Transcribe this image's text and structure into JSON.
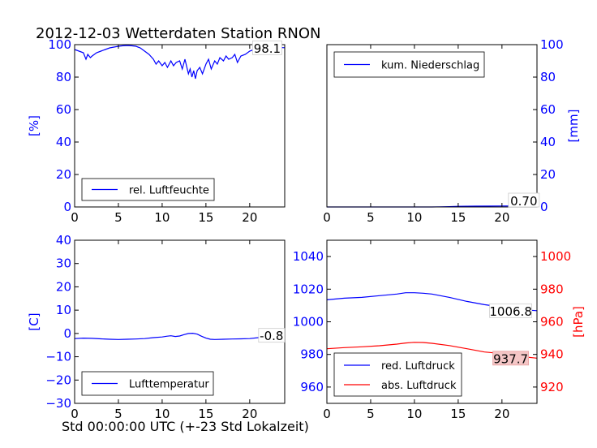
{
  "title": "2012-12-03 Wetterdaten Station RNON",
  "xcaption": "Std 00:00:00 UTC (+-23 Std Lokalzeit)",
  "colors": {
    "blue": "#0000ff",
    "red": "#ff0000",
    "black": "#000000",
    "callout_red_fill": "#f4c6c6"
  },
  "chart_data": [
    {
      "type": "line",
      "xlim": [
        0,
        24
      ],
      "ylim": [
        0,
        100
      ],
      "xticks": [
        "0",
        "5",
        "10",
        "15",
        "20"
      ],
      "yticks": [
        "0",
        "20",
        "40",
        "60",
        "80",
        "100"
      ],
      "ylabel": "[%]",
      "legend": {
        "position": "lower-center",
        "entries": [
          "rel. Luftfeuchte"
        ]
      },
      "callout": {
        "text": "98.1",
        "x": 22,
        "y": 98.1
      },
      "series": [
        {
          "name": "rel. Luftfeuchte",
          "color": "#0000ff",
          "x": [
            0,
            0.5,
            1.0,
            1.3,
            1.5,
            1.8,
            2.0,
            2.5,
            3.0,
            3.5,
            4.0,
            4.5,
            5.0,
            5.5,
            6.0,
            6.5,
            7.0,
            7.5,
            8.0,
            8.5,
            9.0,
            9.3,
            9.6,
            10.0,
            10.3,
            10.6,
            11.0,
            11.3,
            11.6,
            12.0,
            12.3,
            12.6,
            13.0,
            13.2,
            13.4,
            13.6,
            13.8,
            14.0,
            14.3,
            14.6,
            15.0,
            15.3,
            15.6,
            16.0,
            16.3,
            16.6,
            17.0,
            17.3,
            17.6,
            18.0,
            18.3,
            18.6,
            19.0,
            19.5,
            20.0,
            20.5,
            21.0,
            22.0,
            23.0,
            24.0
          ],
          "y": [
            97,
            96,
            95,
            91,
            94,
            92,
            93,
            95,
            96,
            97,
            98,
            98.5,
            99,
            99.3,
            99.5,
            99.3,
            99,
            98,
            96,
            94,
            91,
            88,
            90,
            87,
            89,
            86,
            90,
            87,
            89,
            90,
            85,
            91,
            82,
            85,
            80,
            84,
            79,
            84,
            86,
            82,
            88,
            91,
            85,
            90,
            88,
            92,
            90,
            93,
            91,
            92,
            94,
            89,
            93,
            94,
            96,
            97,
            98,
            98.5,
            98.3,
            98.1
          ]
        }
      ]
    },
    {
      "type": "line",
      "xlim": [
        0,
        24
      ],
      "ylim": [
        0,
        100
      ],
      "xticks": [
        "0",
        "5",
        "10",
        "15",
        "20"
      ],
      "yticks": [
        "0",
        "20",
        "40",
        "60",
        "80",
        "100"
      ],
      "ylabel": "[mm]",
      "legend": {
        "position": "upper-left",
        "entries": [
          "kum. Niederschlag"
        ]
      },
      "callout": {
        "text": "0.70",
        "x": 22.5,
        "y": 0.7
      },
      "series": [
        {
          "name": "kum. Niederschlag",
          "color": "#0000ff",
          "x": [
            0,
            12,
            13,
            14,
            15,
            17,
            20,
            24
          ],
          "y": [
            0,
            0,
            0.1,
            0.2,
            0.4,
            0.5,
            0.6,
            0.7
          ]
        }
      ]
    },
    {
      "type": "line",
      "xlim": [
        0,
        24
      ],
      "ylim": [
        -30,
        40
      ],
      "xticks": [
        "0",
        "5",
        "10",
        "15",
        "20"
      ],
      "yticks": [
        "−30",
        "−20",
        "−10",
        "0",
        "10",
        "20",
        "30",
        "40"
      ],
      "ylabel": "[C]",
      "legend": {
        "position": "lower-center",
        "entries": [
          "Lufttemperatur"
        ]
      },
      "callout": {
        "text": "-0.8",
        "x": 22.5,
        "y": -0.8
      },
      "series": [
        {
          "name": "Lufttemperatur",
          "color": "#0000ff",
          "x": [
            0,
            1,
            2,
            3,
            4,
            5,
            6,
            7,
            8,
            9,
            10,
            10.5,
            11,
            11.5,
            12,
            12.5,
            13,
            13.5,
            14,
            14.5,
            15,
            15.5,
            16,
            17,
            18,
            19,
            20,
            21,
            22,
            23,
            24
          ],
          "y": [
            -2.2,
            -2.0,
            -2.1,
            -2.3,
            -2.5,
            -2.6,
            -2.5,
            -2.4,
            -2.2,
            -1.8,
            -1.5,
            -1.2,
            -1.0,
            -1.3,
            -1.1,
            -0.5,
            0.0,
            0.1,
            -0.3,
            -1.2,
            -2.0,
            -2.5,
            -2.6,
            -2.5,
            -2.4,
            -2.3,
            -2.2,
            -1.8,
            -1.4,
            -1.0,
            -0.8
          ]
        }
      ]
    },
    {
      "type": "line",
      "xlim": [
        0,
        24
      ],
      "ylim": [
        950,
        1050
      ],
      "ylim_right": [
        910,
        1010
      ],
      "xticks": [
        "0",
        "5",
        "10",
        "15",
        "20"
      ],
      "yticks": [
        "960",
        "980",
        "1000",
        "1020",
        "1040"
      ],
      "yticks_right": [
        "920",
        "940",
        "960",
        "980",
        "1000"
      ],
      "ylabel_right": "[hPa]",
      "legend": {
        "position": "lower-left",
        "entries": [
          "red. Luftdruck",
          "abs. Luftdruck"
        ]
      },
      "callouts": [
        {
          "text": "1006.8",
          "x": 21,
          "y": 1006.8,
          "axis": "left"
        },
        {
          "text": "937.7",
          "x": 21,
          "y": 937.7,
          "axis": "right"
        }
      ],
      "series": [
        {
          "name": "red. Luftdruck",
          "color": "#0000ff",
          "axis": "left",
          "x": [
            0,
            2,
            4,
            6,
            8,
            9,
            10,
            11,
            12,
            14,
            16,
            18,
            20,
            22,
            24
          ],
          "y": [
            1013.5,
            1014.5,
            1015,
            1016,
            1017,
            1017.8,
            1017.8,
            1017.5,
            1017,
            1015,
            1012.5,
            1010.5,
            1009,
            1007.5,
            1006.8
          ]
        },
        {
          "name": "abs. Luftdruck",
          "color": "#ff0000",
          "axis": "right",
          "x": [
            0,
            2,
            4,
            6,
            8,
            9,
            10,
            11,
            12,
            14,
            16,
            18,
            20,
            22,
            24
          ],
          "y": [
            943.5,
            944.2,
            944.7,
            945.3,
            946.3,
            947,
            947.4,
            947.3,
            946.8,
            945.4,
            943.5,
            941.5,
            940.5,
            938.8,
            937.7
          ]
        }
      ]
    }
  ]
}
